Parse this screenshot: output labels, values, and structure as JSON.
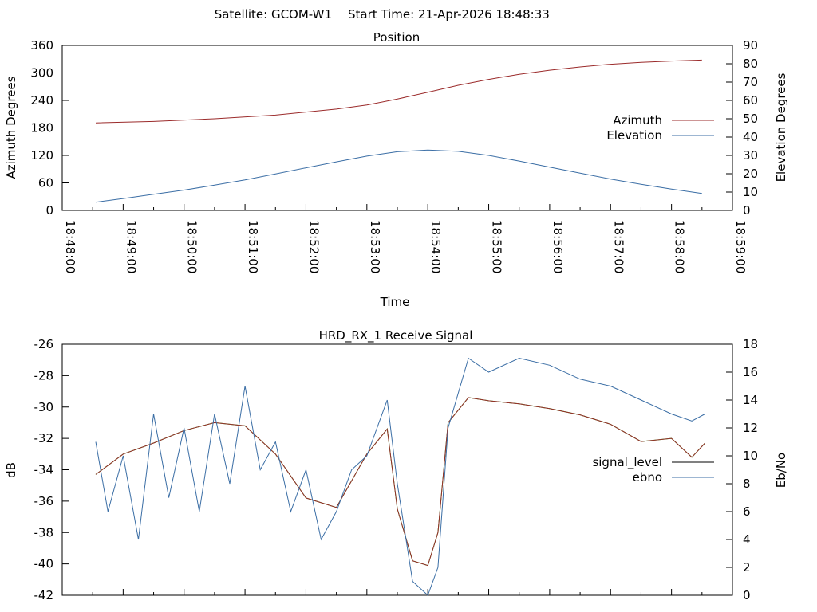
{
  "header": {
    "satellite": "Satellite: GCOM-W1",
    "start_time": "Start Time: 21-Apr-2026 18:48:33"
  },
  "colors": {
    "azimuth": "#9b2b2b",
    "elevation": "#3b6ea5",
    "signal_level": "#9b2b2b",
    "ebno_trace": "#00aa00",
    "ebno": "#3b6ea5",
    "axis": "#000000"
  },
  "chart_data": [
    {
      "type": "line",
      "title": "Position",
      "xlabel": "Time",
      "ylabel": "Azimuth Degrees",
      "y2label": "Elevation Degrees",
      "xlim": [
        "18:48:00",
        "18:59:00"
      ],
      "ylim": [
        0,
        360
      ],
      "y2lim": [
        0,
        90
      ],
      "xticks": [
        "18:48:00",
        "18:49:00",
        "18:50:00",
        "18:51:00",
        "18:52:00",
        "18:53:00",
        "18:54:00",
        "18:55:00",
        "18:56:00",
        "18:57:00",
        "18:58:00",
        "18:59:00"
      ],
      "yticks": [
        "0",
        "60",
        "120",
        "180",
        "240",
        "300",
        "360"
      ],
      "y2ticks": [
        "0",
        "10",
        "20",
        "30",
        "40",
        "50",
        "60",
        "70",
        "80",
        "90"
      ],
      "legend_position": "right",
      "series": [
        {
          "name": "Azimuth",
          "axis": "y",
          "color": "#9b2b2b",
          "x": [
            "18:48:33",
            "18:49:30",
            "18:50:30",
            "18:51:30",
            "18:52:30",
            "18:53:00",
            "18:53:30",
            "18:54:00",
            "18:54:30",
            "18:55:00",
            "18:55:30",
            "18:56:00",
            "18:56:30",
            "18:57:00",
            "18:57:30",
            "18:58:00",
            "18:58:30"
          ],
          "values": [
            191,
            194,
            200,
            208,
            221,
            230,
            243,
            258,
            273,
            286,
            297,
            306,
            313,
            319,
            323,
            326,
            328
          ]
        },
        {
          "name": "Elevation",
          "axis": "y2",
          "color": "#3b6ea5",
          "x": [
            "18:48:33",
            "18:49:00",
            "18:49:30",
            "18:50:00",
            "18:50:30",
            "18:51:00",
            "18:51:30",
            "18:52:00",
            "18:52:30",
            "18:53:00",
            "18:53:30",
            "18:54:00",
            "18:54:30",
            "18:55:00",
            "18:55:30",
            "18:56:00",
            "18:56:30",
            "18:57:00",
            "18:57:30",
            "18:58:00",
            "18:58:30"
          ],
          "values": [
            4.5,
            6.5,
            8.8,
            11.1,
            13.8,
            16.6,
            19.9,
            23.2,
            26.5,
            29.6,
            32.0,
            32.9,
            32.2,
            30.0,
            26.9,
            23.6,
            20.3,
            17.1,
            14.2,
            11.6,
            9.2
          ]
        }
      ]
    },
    {
      "type": "line",
      "title": "HRD_RX_1 Receive Signal",
      "xlabel": "",
      "ylabel": "dB",
      "y2label": "Eb/No",
      "xlim": [
        "18:48:00",
        "18:59:00"
      ],
      "ylim": [
        -42,
        -26
      ],
      "y2lim": [
        0,
        18
      ],
      "yticks": [
        "-42",
        "-40",
        "-38",
        "-36",
        "-34",
        "-32",
        "-30",
        "-28",
        "-26"
      ],
      "y2ticks": [
        "0",
        "2",
        "4",
        "6",
        "8",
        "10",
        "12",
        "14",
        "16",
        "18"
      ],
      "legend_position": "right",
      "series": [
        {
          "name": "signal_level",
          "axis": "y",
          "color": "#9b2b2b",
          "x": [
            "18:48:33",
            "18:49:00",
            "18:49:30",
            "18:50:00",
            "18:50:30",
            "18:51:00",
            "18:51:30",
            "18:52:00",
            "18:52:30",
            "18:53:00",
            "18:53:20",
            "18:53:30",
            "18:53:45",
            "18:54:00",
            "18:54:10",
            "18:54:20",
            "18:54:40",
            "18:55:00",
            "18:55:30",
            "18:56:00",
            "18:56:30",
            "18:57:00",
            "18:57:30",
            "18:58:00",
            "18:58:20",
            "18:58:33"
          ],
          "values": [
            -34.3,
            -33.0,
            -32.3,
            -31.5,
            -31.0,
            -31.2,
            -33.0,
            -35.8,
            -36.4,
            -33.0,
            -31.4,
            -36.5,
            -39.8,
            -40.1,
            -38.0,
            -31.0,
            -29.4,
            -29.6,
            -29.8,
            -30.1,
            -30.5,
            -31.1,
            -32.2,
            -32.0,
            -33.2,
            -32.3
          ]
        },
        {
          "name": "ebno",
          "axis": "y2",
          "color": "#3b6ea5",
          "x": [
            "18:48:33",
            "18:48:45",
            "18:49:00",
            "18:49:15",
            "18:49:30",
            "18:49:45",
            "18:50:00",
            "18:50:15",
            "18:50:30",
            "18:50:45",
            "18:51:00",
            "18:51:15",
            "18:51:30",
            "18:51:45",
            "18:52:00",
            "18:52:15",
            "18:52:30",
            "18:52:45",
            "18:53:00",
            "18:53:20",
            "18:53:30",
            "18:53:45",
            "18:54:00",
            "18:54:10",
            "18:54:20",
            "18:54:40",
            "18:55:00",
            "18:55:30",
            "18:56:00",
            "18:56:30",
            "18:57:00",
            "18:57:30",
            "18:58:00",
            "18:58:20",
            "18:58:33"
          ],
          "values": [
            11,
            6,
            10,
            4,
            13,
            7,
            12,
            6,
            13,
            8,
            15,
            9,
            11,
            6,
            9,
            4,
            6,
            9,
            10,
            14,
            8,
            1,
            0,
            2,
            12,
            17,
            16,
            17,
            16.5,
            15.5,
            15,
            14,
            13,
            12.5,
            13
          ]
        }
      ]
    }
  ],
  "legends": {
    "position": {
      "items": [
        "Azimuth",
        "Elevation"
      ]
    },
    "signal": {
      "items": [
        "signal_level",
        "ebno"
      ]
    }
  }
}
